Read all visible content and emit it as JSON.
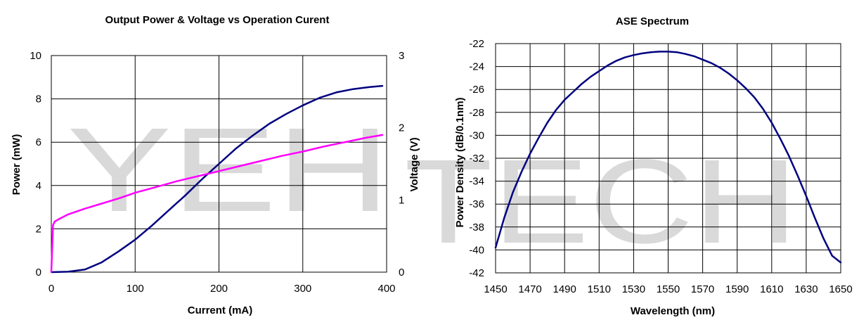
{
  "watermark": {
    "line1": "YEH",
    "line2": "TECH",
    "color": "#d9d9d9"
  },
  "chart_data": [
    {
      "type": "line",
      "title": "Output Power & Voltage vs Operation Curent",
      "xlabel": "Current (mA)",
      "ylabel": "Power (mW)",
      "y2label": "Voltage (V)",
      "xlim": [
        0,
        400
      ],
      "ylim": [
        0,
        10
      ],
      "y2lim": [
        0,
        3
      ],
      "xticks": [
        0,
        100,
        200,
        300,
        400
      ],
      "yticks": [
        0,
        2,
        4,
        6,
        8,
        10
      ],
      "y2ticks": [
        0,
        1,
        2,
        3
      ],
      "grid": true,
      "series": [
        {
          "axis": "left",
          "color": "#000080",
          "x": [
            0,
            20,
            40,
            60,
            80,
            100,
            120,
            140,
            160,
            180,
            200,
            220,
            240,
            260,
            280,
            300,
            320,
            340,
            360,
            380,
            395
          ],
          "y": [
            0,
            0.02,
            0.12,
            0.45,
            0.95,
            1.5,
            2.15,
            2.85,
            3.55,
            4.3,
            5.0,
            5.7,
            6.3,
            6.85,
            7.3,
            7.7,
            8.05,
            8.3,
            8.45,
            8.55,
            8.6
          ]
        },
        {
          "axis": "right",
          "color": "#ff00ff",
          "x": [
            0,
            2,
            4,
            10,
            20,
            40,
            60,
            80,
            100,
            125,
            150,
            175,
            200,
            225,
            250,
            275,
            300,
            325,
            350,
            375,
            395
          ],
          "y": [
            0,
            0.65,
            0.7,
            0.74,
            0.8,
            0.88,
            0.95,
            1.02,
            1.1,
            1.18,
            1.26,
            1.33,
            1.4,
            1.47,
            1.54,
            1.61,
            1.67,
            1.74,
            1.8,
            1.86,
            1.9
          ]
        }
      ]
    },
    {
      "type": "line",
      "title": "ASE Spectrum",
      "xlabel": "Wavelength (nm)",
      "ylabel": "Power Density (dB/0.1nm)",
      "xlim": [
        1450,
        1650
      ],
      "ylim": [
        -42,
        -22
      ],
      "xticks": [
        1450,
        1470,
        1490,
        1510,
        1530,
        1550,
        1570,
        1590,
        1610,
        1630,
        1650
      ],
      "yticks": [
        -22,
        -24,
        -26,
        -28,
        -30,
        -32,
        -34,
        -36,
        -38,
        -40,
        -42
      ],
      "grid": true,
      "series": [
        {
          "color": "#000080",
          "x": [
            1450,
            1455,
            1460,
            1465,
            1470,
            1475,
            1480,
            1485,
            1490,
            1495,
            1500,
            1505,
            1510,
            1515,
            1520,
            1525,
            1530,
            1535,
            1540,
            1545,
            1550,
            1555,
            1560,
            1565,
            1570,
            1575,
            1580,
            1585,
            1590,
            1595,
            1600,
            1605,
            1610,
            1615,
            1620,
            1625,
            1630,
            1635,
            1640,
            1645,
            1650
          ],
          "y": [
            -39.8,
            -37.2,
            -35.0,
            -33.2,
            -31.6,
            -30.2,
            -28.9,
            -27.8,
            -26.9,
            -26.2,
            -25.5,
            -24.9,
            -24.4,
            -23.9,
            -23.5,
            -23.2,
            -23.0,
            -22.85,
            -22.75,
            -22.7,
            -22.7,
            -22.75,
            -22.9,
            -23.1,
            -23.4,
            -23.7,
            -24.1,
            -24.6,
            -25.2,
            -25.9,
            -26.7,
            -27.7,
            -28.9,
            -30.3,
            -31.8,
            -33.5,
            -35.3,
            -37.2,
            -39.0,
            -40.5,
            -41.1
          ]
        }
      ]
    }
  ]
}
